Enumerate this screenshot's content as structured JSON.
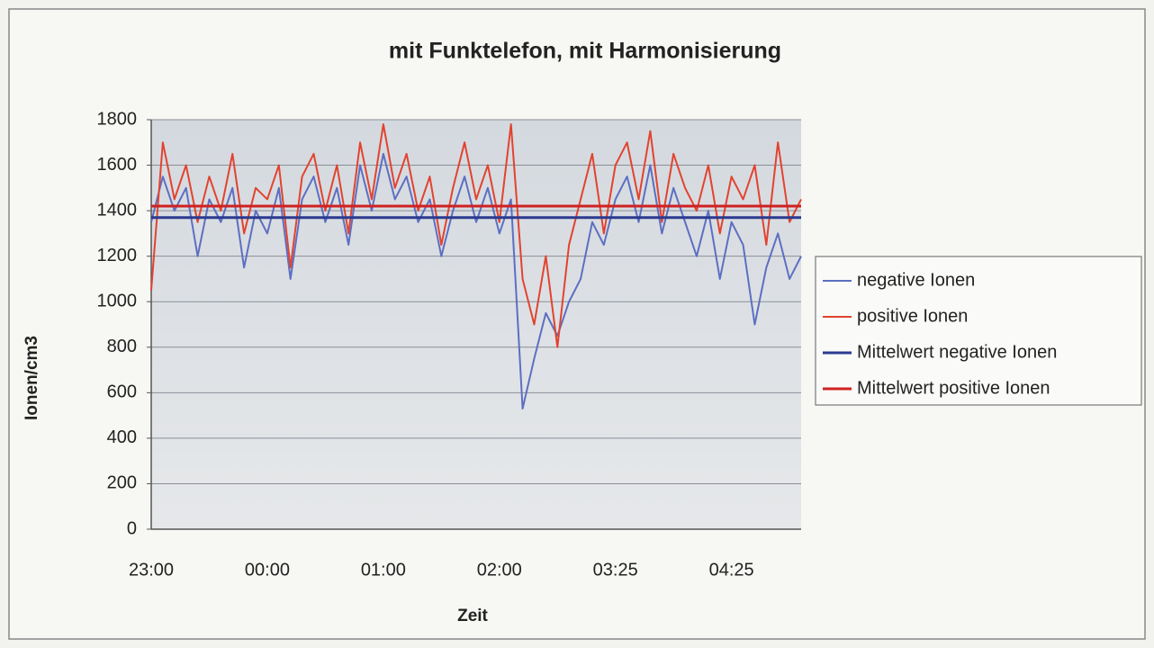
{
  "chart_data": {
    "type": "line",
    "title": "mit Funktelefon, mit Harmonisierung",
    "y_label": "Ionen/cm3",
    "x_label": "Zeit",
    "categories": [
      "23:00",
      null,
      null,
      null,
      null,
      null,
      null,
      null,
      null,
      null,
      "00:00",
      null,
      null,
      null,
      null,
      null,
      null,
      null,
      null,
      null,
      "01:00",
      null,
      null,
      null,
      null,
      null,
      null,
      null,
      null,
      null,
      "02:00",
      null,
      null,
      null,
      null,
      null,
      null,
      null,
      null,
      null,
      "03:25",
      null,
      null,
      null,
      null,
      null,
      null,
      null,
      null,
      null,
      "04:25",
      null,
      null,
      null,
      null,
      null,
      null
    ],
    "ylim": [
      0,
      1800
    ],
    "yticks": [
      0,
      200,
      400,
      600,
      800,
      1000,
      1200,
      1400,
      1600,
      1800
    ],
    "grid": true,
    "legend": "right",
    "series": [
      {
        "name": "negative Ionen",
        "color": "#5d6fc2",
        "values": [
          1350,
          1550,
          1400,
          1500,
          1200,
          1450,
          1350,
          1500,
          1150,
          1400,
          1300,
          1500,
          1100,
          1450,
          1550,
          1350,
          1500,
          1250,
          1600,
          1400,
          1650,
          1450,
          1550,
          1350,
          1450,
          1200,
          1400,
          1550,
          1350,
          1500,
          1300,
          1450,
          530,
          750,
          950,
          850,
          1000,
          1100,
          1350,
          1250,
          1450,
          1550,
          1350,
          1600,
          1300,
          1500,
          1350,
          1200,
          1400,
          1100,
          1350,
          1250,
          900,
          1150,
          1300,
          1100,
          1200
        ]
      },
      {
        "name": "positive Ionen",
        "color": "#e2432f",
        "values": [
          1050,
          1700,
          1450,
          1600,
          1350,
          1550,
          1400,
          1650,
          1300,
          1500,
          1450,
          1600,
          1150,
          1550,
          1650,
          1400,
          1600,
          1300,
          1700,
          1450,
          1780,
          1500,
          1650,
          1400,
          1550,
          1250,
          1500,
          1700,
          1450,
          1600,
          1350,
          1780,
          1100,
          900,
          1200,
          800,
          1250,
          1450,
          1650,
          1300,
          1600,
          1700,
          1450,
          1750,
          1350,
          1650,
          1500,
          1400,
          1600,
          1300,
          1550,
          1450,
          1600,
          1250,
          1700,
          1350,
          1450
        ]
      },
      {
        "name": "Mittelwert negative Ionen",
        "color": "#2b3a8f",
        "values": [
          1370,
          1370,
          1370,
          1370,
          1370,
          1370,
          1370,
          1370,
          1370,
          1370,
          1370,
          1370,
          1370,
          1370,
          1370,
          1370,
          1370,
          1370,
          1370,
          1370,
          1370,
          1370,
          1370,
          1370,
          1370,
          1370,
          1370,
          1370,
          1370,
          1370,
          1370,
          1370,
          1370,
          1370,
          1370,
          1370,
          1370,
          1370,
          1370,
          1370,
          1370,
          1370,
          1370,
          1370,
          1370,
          1370,
          1370,
          1370,
          1370,
          1370,
          1370,
          1370,
          1370,
          1370,
          1370,
          1370,
          1370
        ]
      },
      {
        "name": "Mittelwert positive Ionen",
        "color": "#cf2222",
        "values": [
          1420,
          1420,
          1420,
          1420,
          1420,
          1420,
          1420,
          1420,
          1420,
          1420,
          1420,
          1420,
          1420,
          1420,
          1420,
          1420,
          1420,
          1420,
          1420,
          1420,
          1420,
          1420,
          1420,
          1420,
          1420,
          1420,
          1420,
          1420,
          1420,
          1420,
          1420,
          1420,
          1420,
          1420,
          1420,
          1420,
          1420,
          1420,
          1420,
          1420,
          1420,
          1420,
          1420,
          1420,
          1420,
          1420,
          1420,
          1420,
          1420,
          1420,
          1420,
          1420,
          1420,
          1420,
          1420,
          1420,
          1420
        ]
      }
    ]
  }
}
